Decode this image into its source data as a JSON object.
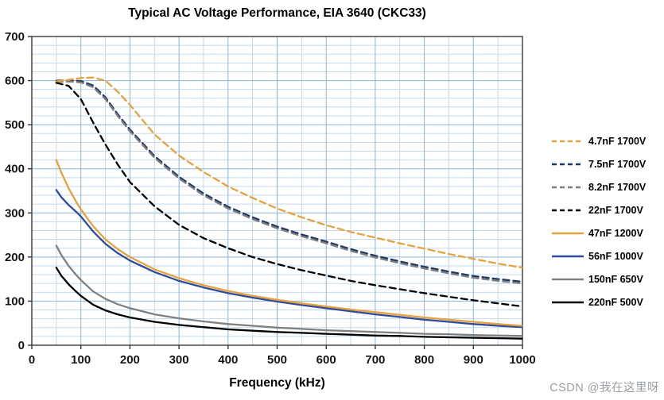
{
  "watermark": "CSDN @我在这里呀",
  "chart_data": {
    "type": "line",
    "title": "Typical AC Voltage Performance, EIA 3640 (CKC33)",
    "xlabel": "Frequency (kHz)",
    "ylabel": "",
    "xlim": [
      0,
      1000
    ],
    "ylim": [
      0,
      700
    ],
    "x_ticks": [
      0,
      100,
      200,
      300,
      400,
      500,
      600,
      700,
      800,
      900,
      1000
    ],
    "y_ticks": [
      0,
      100,
      200,
      300,
      400,
      500,
      600,
      700
    ],
    "grid": {
      "minor_x_step": 50,
      "minor_y_step": 20,
      "on": true
    },
    "legend_position": "right",
    "draw_order": [
      1,
      2,
      0,
      3,
      7,
      6,
      5,
      4
    ],
    "colors": {
      "grid_minor": "#c3daee",
      "grid_major": "#8ab5da",
      "border": "#3a3a3a",
      "tick_label": "#161616"
    },
    "series": [
      {
        "name": "4.7nF 1700V",
        "color": "#E6A23C",
        "style": "dashed",
        "x": [
          50,
          75,
          100,
          125,
          150,
          175,
          200,
          250,
          300,
          350,
          400,
          450,
          500,
          550,
          600,
          650,
          700,
          750,
          800,
          850,
          900,
          950,
          1000
        ],
        "y": [
          598,
          602,
          606,
          607,
          600,
          575,
          545,
          478,
          430,
          393,
          360,
          334,
          310,
          290,
          272,
          257,
          244,
          231,
          219,
          207,
          196,
          185,
          176
        ]
      },
      {
        "name": "7.5nF 1700V",
        "color": "#1F3864",
        "style": "dashed",
        "x": [
          50,
          75,
          100,
          125,
          150,
          175,
          200,
          250,
          300,
          350,
          400,
          450,
          500,
          550,
          600,
          650,
          700,
          750,
          800,
          850,
          900,
          950,
          1000
        ],
        "y": [
          600,
          601,
          599,
          589,
          562,
          524,
          489,
          429,
          382,
          344,
          314,
          290,
          269,
          251,
          235,
          218,
          203,
          190,
          178,
          167,
          157,
          150,
          144
        ]
      },
      {
        "name": "8.2nF 1700V",
        "color": "#7F7F7F",
        "style": "dashed",
        "x": [
          50,
          75,
          100,
          125,
          150,
          175,
          200,
          250,
          300,
          350,
          400,
          450,
          500,
          550,
          600,
          650,
          700,
          750,
          800,
          850,
          900,
          950,
          1000
        ],
        "y": [
          597,
          598,
          596,
          585,
          558,
          520,
          485,
          425,
          378,
          340,
          310,
          286,
          265,
          247,
          231,
          214,
          199,
          186,
          174,
          163,
          153,
          146,
          140
        ]
      },
      {
        "name": "22nF 1700V",
        "color": "#000000",
        "style": "dashed",
        "x": [
          50,
          75,
          100,
          125,
          150,
          175,
          200,
          250,
          300,
          350,
          400,
          450,
          500,
          550,
          600,
          650,
          700,
          750,
          800,
          850,
          900,
          950,
          1000
        ],
        "y": [
          595,
          588,
          558,
          505,
          455,
          410,
          370,
          315,
          273,
          243,
          220,
          200,
          184,
          170,
          158,
          146,
          136,
          127,
          118,
          110,
          102,
          95,
          88
        ]
      },
      {
        "name": "47nF 1200V",
        "color": "#E6A23C",
        "style": "solid",
        "x": [
          50,
          60,
          75,
          90,
          100,
          125,
          150,
          175,
          200,
          250,
          300,
          350,
          400,
          450,
          500,
          550,
          600,
          650,
          700,
          750,
          800,
          850,
          900,
          950,
          1000
        ],
        "y": [
          420,
          392,
          356,
          326,
          308,
          270,
          240,
          218,
          200,
          172,
          152,
          136,
          123,
          112,
          103,
          95,
          88,
          81,
          75,
          69,
          63,
          58,
          53,
          48,
          44
        ]
      },
      {
        "name": "56nF 1000V",
        "color": "#2E4C9E",
        "style": "solid",
        "x": [
          50,
          60,
          75,
          90,
          100,
          125,
          150,
          175,
          200,
          250,
          300,
          350,
          400,
          450,
          500,
          550,
          600,
          650,
          700,
          750,
          800,
          850,
          900,
          950,
          1000
        ],
        "y": [
          352,
          336,
          318,
          303,
          292,
          258,
          230,
          209,
          192,
          166,
          146,
          131,
          118,
          108,
          99,
          91,
          84,
          77,
          70,
          64,
          58,
          53,
          48,
          44,
          41
        ]
      },
      {
        "name": "150nF 650V",
        "color": "#808080",
        "style": "solid",
        "x": [
          50,
          60,
          75,
          90,
          100,
          125,
          150,
          175,
          200,
          250,
          300,
          350,
          400,
          450,
          500,
          550,
          600,
          650,
          700,
          750,
          800,
          850,
          900,
          950,
          1000
        ],
        "y": [
          226,
          205,
          180,
          160,
          148,
          122,
          105,
          93,
          84,
          70,
          61,
          54,
          48,
          44,
          40,
          37,
          34,
          32,
          30,
          28,
          26,
          25,
          23,
          22,
          21
        ]
      },
      {
        "name": "220nF 500V",
        "color": "#000000",
        "style": "solid",
        "x": [
          50,
          60,
          75,
          90,
          100,
          125,
          150,
          175,
          200,
          250,
          300,
          350,
          400,
          450,
          500,
          550,
          600,
          650,
          700,
          750,
          800,
          850,
          900,
          950,
          1000
        ],
        "y": [
          176,
          158,
          138,
          122,
          112,
          92,
          79,
          70,
          63,
          53,
          46,
          41,
          36,
          33,
          30,
          28,
          26,
          24,
          22,
          21,
          19,
          18,
          17,
          16,
          15
        ]
      }
    ]
  }
}
